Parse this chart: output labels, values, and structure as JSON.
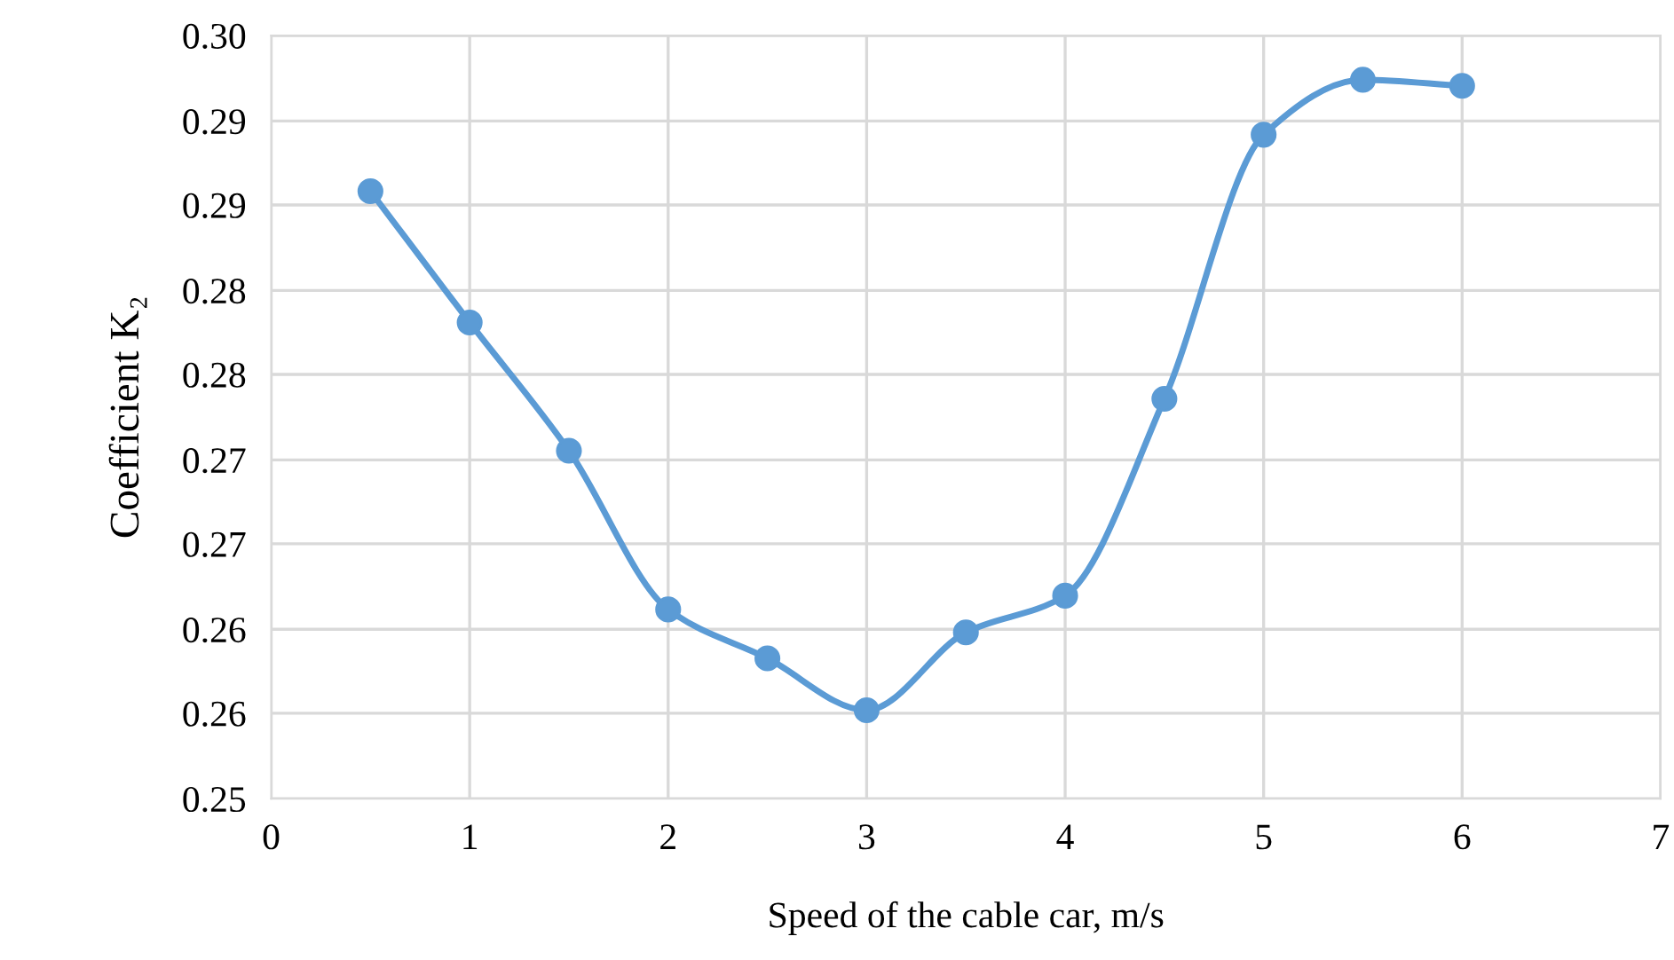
{
  "chart_data": {
    "type": "line",
    "xlabel": "Speed of the cable car, m/s",
    "ylabel": "Coefficient K₂",
    "x": [
      0.5,
      1,
      1.5,
      2,
      2.5,
      3,
      3.5,
      4,
      4.5,
      5,
      5.5,
      6
    ],
    "series": [
      {
        "color": "#5b9bd5",
        "values": [
          0.2898,
          0.2812,
          0.2728,
          0.2624,
          0.2592,
          0.2558,
          0.2609,
          0.2633,
          0.2762,
          0.2935,
          0.2971,
          0.2967
        ]
      }
    ],
    "xlim": [
      0,
      7
    ],
    "xticks": [
      0,
      1,
      2,
      3,
      4,
      5,
      6,
      7
    ],
    "ylim": [
      0.25,
      0.3
    ],
    "yticks": [
      0.25,
      {
        "value": 0.2556,
        "label": "0.26"
      },
      {
        "value": 0.2611,
        "label": "0.26"
      },
      {
        "value": 0.2667,
        "label": "0.27"
      },
      {
        "value": 0.2722,
        "label": "0.27"
      },
      {
        "value": 0.2778,
        "label": "0.28"
      },
      {
        "value": 0.2833,
        "label": "0.28"
      },
      {
        "value": 0.2889,
        "label": "0.29"
      },
      {
        "value": 0.2944,
        "label": "0.29"
      },
      {
        "value": 0.3,
        "label": "0.30"
      }
    ],
    "grid": true,
    "marker": "circle",
    "line_style": "solid",
    "legend": false
  }
}
